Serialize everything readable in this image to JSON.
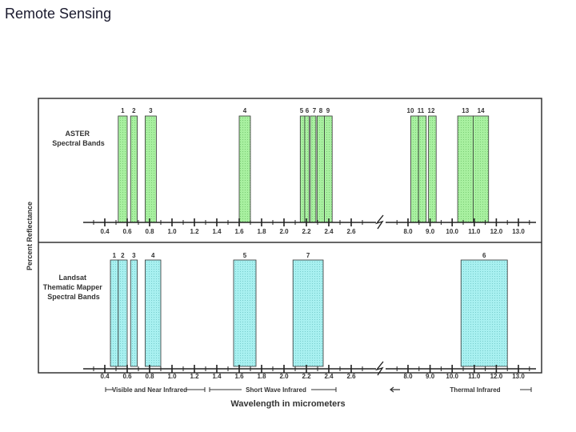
{
  "slide": {
    "title": "Remote Sensing"
  },
  "colors": {
    "aster_band": "#a8f0a0",
    "landsat_band": "#a8f0f0",
    "axis": "#222222",
    "frame": "#333333"
  },
  "chart_data": {
    "type": "band-diagram",
    "ylabel": "Percent Reflectance",
    "xlabel": "Wavelength in micrometers",
    "x_ticks": {
      "short_labels": [
        "0.4",
        "0.6",
        "0.8",
        "1.0",
        "1.2",
        "1.4",
        "1.6",
        "1.8",
        "2.0",
        "2.2",
        "2.4",
        "2.6"
      ],
      "short_values": [
        0.4,
        0.6,
        0.8,
        1.0,
        1.2,
        1.4,
        1.6,
        1.8,
        2.0,
        2.2,
        2.4,
        2.6
      ],
      "thermal_labels": [
        "8.0",
        "9.0",
        "10.0",
        "11.0",
        "12.0",
        "13.0"
      ],
      "thermal_values": [
        8.0,
        9.0,
        10.0,
        11.0,
        12.0,
        13.0
      ]
    },
    "aster": {
      "title_line1": "ASTER",
      "title_line2": "Spectral Bands",
      "bands": [
        {
          "label": "1",
          "start": 0.52,
          "end": 0.6
        },
        {
          "label": "2",
          "start": 0.63,
          "end": 0.69
        },
        {
          "label": "3",
          "start": 0.76,
          "end": 0.86
        },
        {
          "label": "4",
          "start": 1.6,
          "end": 1.7
        },
        {
          "label": "5",
          "start": 2.145,
          "end": 2.185
        },
        {
          "label": "6",
          "start": 2.185,
          "end": 2.225
        },
        {
          "label": "7",
          "start": 2.235,
          "end": 2.285
        },
        {
          "label": "8",
          "start": 2.295,
          "end": 2.365
        },
        {
          "label": "9",
          "start": 2.36,
          "end": 2.43
        },
        {
          "label": "10",
          "start": 8.125,
          "end": 8.475
        },
        {
          "label": "11",
          "start": 8.475,
          "end": 8.825
        },
        {
          "label": "12",
          "start": 8.925,
          "end": 9.275
        },
        {
          "label": "13",
          "start": 10.25,
          "end": 10.95
        },
        {
          "label": "14",
          "start": 10.95,
          "end": 11.65
        }
      ]
    },
    "landsat": {
      "title_line1": "Landsat",
      "title_line2": "Thematic Mapper",
      "title_line3": "Spectral Bands",
      "bands": [
        {
          "label": "1",
          "start": 0.45,
          "end": 0.52
        },
        {
          "label": "2",
          "start": 0.52,
          "end": 0.6
        },
        {
          "label": "3",
          "start": 0.63,
          "end": 0.69
        },
        {
          "label": "4",
          "start": 0.76,
          "end": 0.9
        },
        {
          "label": "5",
          "start": 1.55,
          "end": 1.75
        },
        {
          "label": "7",
          "start": 2.08,
          "end": 2.35
        },
        {
          "label": "6",
          "start": 10.4,
          "end": 12.5
        }
      ]
    },
    "regions": {
      "visible": "Visible and Near Infrared",
      "swir": "Short Wave Infrared",
      "tir": "Thermal Infrared"
    }
  }
}
